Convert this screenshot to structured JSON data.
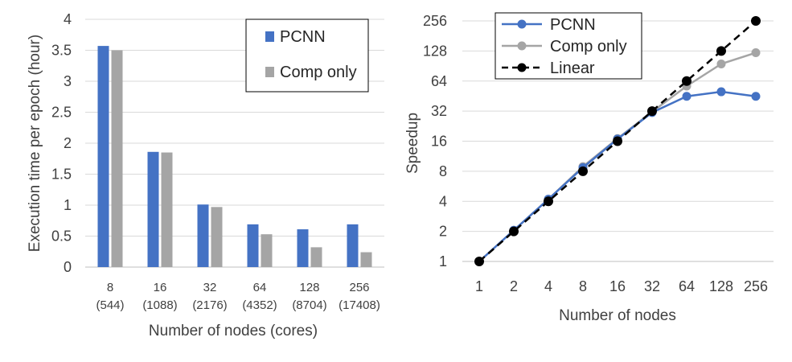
{
  "colors": {
    "pcnn": "#4472C4",
    "comp": "#A5A5A5",
    "linear": "#000000",
    "grid": "#D9D9D9",
    "axis": "#BFBFBF"
  },
  "chart_data": [
    {
      "type": "bar",
      "categories": [
        "8",
        "16",
        "32",
        "64",
        "128",
        "256"
      ],
      "category_sublabels": [
        "(544)",
        "(1088)",
        "(2176)",
        "(4352)",
        "(8704)",
        "(17408)"
      ],
      "series": [
        {
          "name": "PCNN",
          "values": [
            3.57,
            1.86,
            1.01,
            0.69,
            0.61,
            0.69
          ]
        },
        {
          "name": "Comp only",
          "values": [
            3.5,
            1.85,
            0.97,
            0.53,
            0.32,
            0.24
          ]
        }
      ],
      "xlabel": "Number of nodes (cores)",
      "ylabel": "Execution time per epoch (hour)",
      "ylim": [
        0,
        4
      ],
      "yticks": [
        "0",
        "0.5",
        "1",
        "1.5",
        "2",
        "2.5",
        "3",
        "3.5",
        "4"
      ],
      "grid": true,
      "legend": "top-right"
    },
    {
      "type": "line",
      "x": [
        "1",
        "2",
        "4",
        "8",
        "16",
        "32",
        "64",
        "128",
        "256"
      ],
      "series": [
        {
          "name": "PCNN",
          "values": [
            1,
            2.05,
            4.2,
            8.7,
            16.8,
            31,
            45,
            50,
            45
          ]
        },
        {
          "name": "Comp only",
          "values": [
            1,
            2.05,
            4.2,
            8.9,
            17,
            31.5,
            57,
            95,
            123
          ]
        },
        {
          "name": "Linear",
          "values": [
            1,
            2,
            4,
            8,
            16,
            32,
            64,
            128,
            256
          ]
        }
      ],
      "xlabel": "Number of nodes",
      "ylabel": "Speedup",
      "yscale": "log2",
      "ylim": [
        1,
        256
      ],
      "yticks": [
        "1",
        "2",
        "4",
        "8",
        "16",
        "32",
        "64",
        "128",
        "256"
      ],
      "grid": true,
      "legend": "top-left"
    }
  ]
}
